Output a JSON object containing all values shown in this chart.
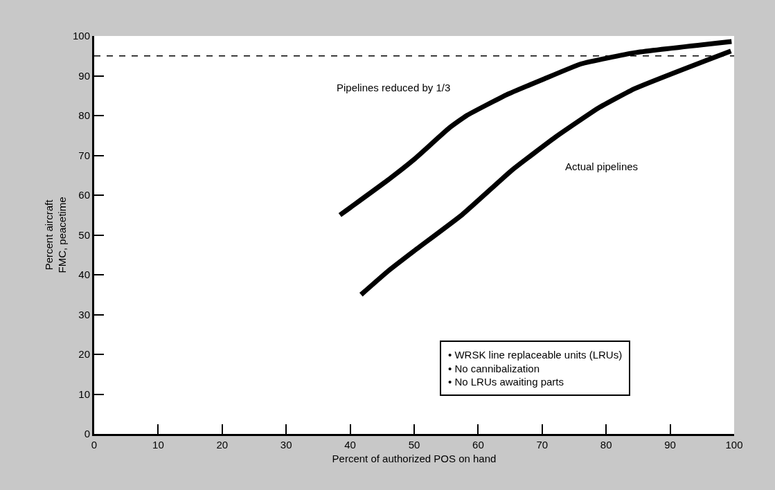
{
  "chart_data": {
    "type": "line",
    "xlabel": "Percent of authorized POS on hand",
    "ylabel": "Percent aircraft\nFMC, peacetime",
    "series": [
      {
        "name": "Pipelines reduced by 1/3",
        "color": "#000000",
        "x": [
          38.4,
          45.9,
          50,
          55.5,
          58.2,
          64.4,
          70,
          76.1,
          84.5,
          99.6
        ],
        "values": [
          55,
          63.8,
          69,
          76.9,
          80,
          85.2,
          89,
          93,
          95.8,
          98.6
        ]
      },
      {
        "name": "Actual pipelines",
        "color": "#000000",
        "x": [
          41.7,
          45.9,
          50,
          57.5,
          65.3,
          72,
          78.8,
          84.5,
          92.3,
          99.5
        ],
        "values": [
          35,
          40.9,
          46,
          55.1,
          66.3,
          74.5,
          81.9,
          86.8,
          91.8,
          96.2
        ]
      }
    ],
    "xlim": [
      0,
      100
    ],
    "xticks": [
      0,
      10,
      20,
      30,
      40,
      50,
      60,
      70,
      80,
      90,
      100
    ],
    "ylim": [
      0,
      100
    ],
    "yticks": [
      0,
      10,
      20,
      30,
      40,
      50,
      60,
      70,
      80,
      90,
      100
    ],
    "ref_lines": [
      {
        "axis": "y",
        "value": 95,
        "color": "#000000",
        "line_style": "dashed"
      }
    ],
    "annotations": [
      "• WRSK line replaceable units (LRUs)\n• No cannibalization\n• No LRUs awaiting parts"
    ],
    "grid": false,
    "legend": false,
    "marker": "none",
    "line_style": "solid"
  }
}
